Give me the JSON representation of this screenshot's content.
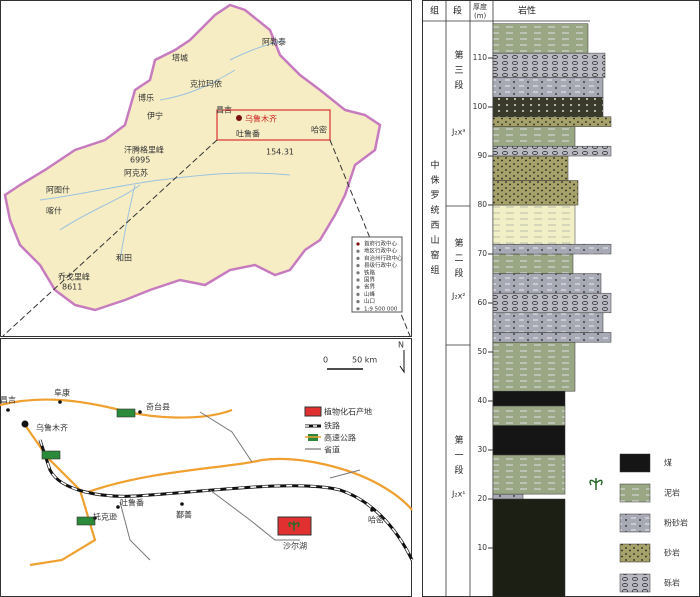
{
  "overview_map": {
    "places": [
      "阿勒泰",
      "塔城",
      "克拉玛依",
      "博乐",
      "伊宁",
      "昌吉",
      "乌鲁木齐",
      "吐鲁番",
      "哈密",
      "汗腾格里峰",
      "6995",
      "阿克苏",
      "阿图什",
      "喀什",
      "和田",
      "乔戈里峰",
      "8611",
      "154.31"
    ],
    "legend": [
      "首府行政中心",
      "地区行政中心",
      "自治州行政中心",
      "县级行政中心",
      "铁路",
      "国界",
      "省界",
      "山峰",
      "山口",
      "1:9 500 000"
    ]
  },
  "detail_map": {
    "north": "N",
    "scale": [
      "0",
      "50 km"
    ],
    "places": [
      "昌吉",
      "阜康",
      "乌鲁木齐",
      "奇台县",
      "吐鲁番",
      "托克逊",
      "鄯善",
      "哈密",
      "沙尔湖"
    ],
    "legend": [
      "植物化石产地",
      "铁路",
      "高速公路",
      "省道"
    ]
  },
  "column": {
    "headers": [
      "组",
      "段",
      "厚度",
      "(m)",
      "岩性"
    ],
    "formation": "中侏罗统西山窑组",
    "members": [
      {
        "name": "第三段",
        "code": "J₂x³"
      },
      {
        "name": "第二段",
        "code": "J₂x²"
      },
      {
        "name": "第一段",
        "code": "J₂x¹"
      }
    ],
    "depth_ticks": [
      10,
      20,
      30,
      40,
      50,
      60,
      70,
      80,
      90,
      100,
      110
    ],
    "legend": [
      "煤",
      "泥岩",
      "粉砂岩",
      "砂岩",
      "砾岩"
    ]
  }
}
